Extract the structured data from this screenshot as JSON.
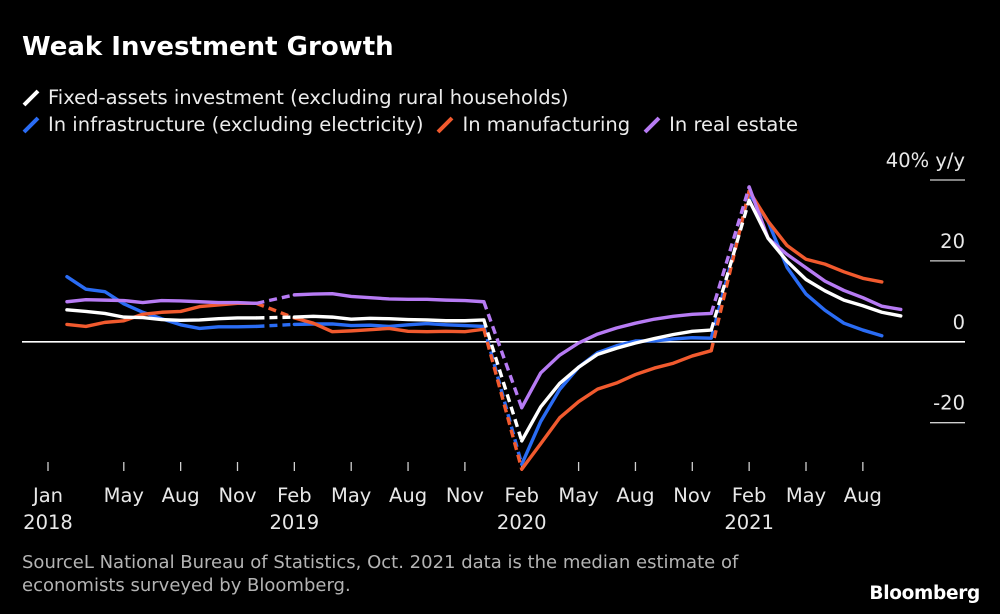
{
  "chart_data": {
    "type": "line",
    "title": "Weak Investment Growth",
    "xlabel": "",
    "ylabel": "",
    "xlim": [
      0,
      45
    ],
    "ylim": [
      -31.6,
      40
    ],
    "x": [
      0,
      1,
      2,
      3,
      4,
      5,
      6,
      7,
      8,
      9,
      10,
      11,
      12,
      13,
      14,
      15,
      16,
      17,
      18,
      19,
      20,
      21,
      22,
      23,
      24,
      25,
      26,
      27,
      28,
      29,
      30,
      31,
      32,
      33,
      34,
      35,
      36,
      37,
      38,
      39,
      40,
      41,
      42,
      43,
      44,
      45
    ],
    "x_ticks": [
      {
        "at": 0,
        "month": "Jan",
        "year": "2018"
      },
      {
        "at": 4,
        "month": "May"
      },
      {
        "at": 7,
        "month": "Aug"
      },
      {
        "at": 10,
        "month": "Nov"
      },
      {
        "at": 13,
        "month": "Feb",
        "year": "2019"
      },
      {
        "at": 16,
        "month": "May"
      },
      {
        "at": 19,
        "month": "Aug"
      },
      {
        "at": 22,
        "month": "Nov"
      },
      {
        "at": 25,
        "month": "Feb",
        "year": "2020"
      },
      {
        "at": 28,
        "month": "May"
      },
      {
        "at": 31,
        "month": "Aug"
      },
      {
        "at": 34,
        "month": "Nov"
      },
      {
        "at": 37,
        "month": "Feb",
        "year": "2021"
      },
      {
        "at": 40,
        "month": "May"
      },
      {
        "at": 43,
        "month": "Aug"
      }
    ],
    "y_ticks": [
      {
        "value": 40,
        "label": "40% y/y"
      },
      {
        "value": 20,
        "label": "20"
      },
      {
        "value": 0,
        "label": "0"
      },
      {
        "value": -20,
        "label": "-20"
      }
    ],
    "series": [
      {
        "name": "Fixed-assets investment (excluding rural households)",
        "color": "#ffffff",
        "values": [
          null,
          7.9,
          7.5,
          7.0,
          6.1,
          6.0,
          5.5,
          5.3,
          5.4,
          5.7,
          5.9,
          5.9,
          null,
          6.1,
          6.3,
          6.1,
          5.6,
          5.8,
          5.7,
          5.5,
          5.4,
          5.2,
          5.2,
          5.4,
          null,
          -24.5,
          -16.1,
          -10.3,
          -6.3,
          -3.1,
          -1.6,
          -0.3,
          0.8,
          1.8,
          2.6,
          2.9,
          null,
          35.0,
          25.6,
          19.9,
          15.4,
          12.6,
          10.3,
          8.9,
          7.3,
          6.4
        ]
      },
      {
        "name": "In infrastructure (excluding electricity)",
        "color": "#2a6cf4",
        "values": [
          null,
          16.1,
          13.0,
          12.4,
          9.4,
          7.3,
          5.7,
          4.2,
          3.3,
          3.7,
          3.7,
          3.8,
          null,
          4.3,
          4.4,
          4.4,
          4.0,
          4.1,
          3.8,
          4.2,
          4.5,
          4.2,
          4.0,
          3.8,
          null,
          -30.3,
          -19.7,
          -11.8,
          -6.3,
          -2.7,
          -1.0,
          0.2,
          0.2,
          0.7,
          1.0,
          0.9,
          null,
          36.6,
          29.7,
          18.4,
          11.8,
          7.8,
          4.6,
          2.9,
          1.5,
          null
        ]
      },
      {
        "name": "In manufacturing",
        "color": "#f15a2e",
        "values": [
          null,
          4.3,
          3.8,
          4.8,
          5.2,
          6.8,
          7.3,
          7.5,
          8.7,
          9.1,
          9.5,
          9.5,
          null,
          5.9,
          4.6,
          2.5,
          2.7,
          3.0,
          3.3,
          2.6,
          2.5,
          2.6,
          2.5,
          3.1,
          null,
          -31.5,
          -25.2,
          -18.8,
          -14.8,
          -11.7,
          -10.2,
          -8.1,
          -6.5,
          -5.3,
          -3.5,
          -2.2,
          null,
          37.3,
          29.8,
          23.8,
          20.4,
          19.2,
          17.3,
          15.7,
          14.8,
          null
        ]
      },
      {
        "name": "In real estate",
        "color": "#b77bf4",
        "values": [
          null,
          9.9,
          10.4,
          10.3,
          10.2,
          9.7,
          10.2,
          10.1,
          9.9,
          9.7,
          9.7,
          9.5,
          null,
          11.6,
          11.8,
          11.9,
          11.2,
          10.9,
          10.6,
          10.5,
          10.5,
          10.3,
          10.2,
          9.9,
          null,
          -16.3,
          -7.7,
          -3.3,
          -0.3,
          1.9,
          3.4,
          4.6,
          5.6,
          6.3,
          6.8,
          7.0,
          null,
          38.3,
          25.6,
          21.6,
          18.3,
          15.0,
          12.7,
          10.9,
          8.8,
          8.0
        ]
      }
    ]
  },
  "source": {
    "line1": "SourceL National Bureau of Statistics, Oct. 2021 data is the median estimate of",
    "line2": "economists surveyed by Bloomberg."
  },
  "brand": {
    "logo_text": "Bloomberg"
  },
  "colors": {
    "background": "#000000",
    "zero_line": "#ffffff",
    "gridline": "#cfcfcf",
    "tick": "#cfcfcf",
    "source_text": "#b4b4b4"
  }
}
